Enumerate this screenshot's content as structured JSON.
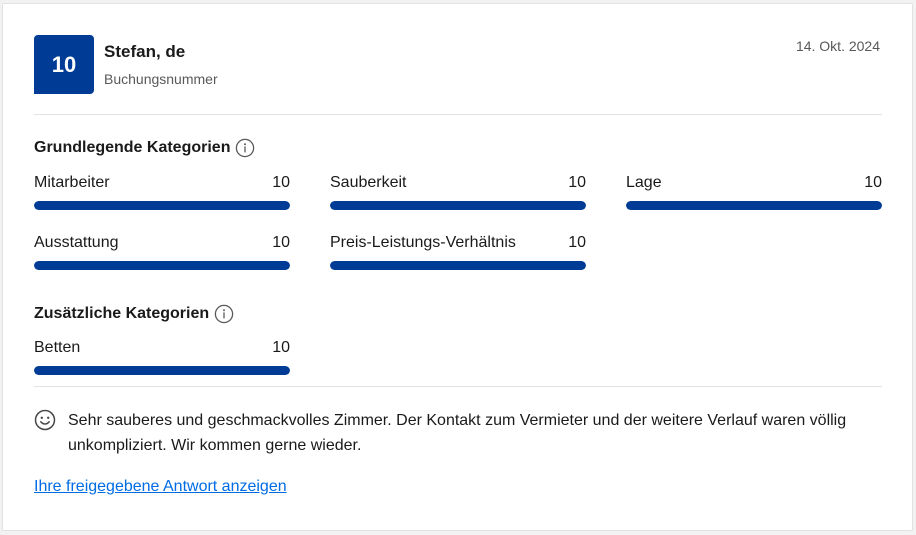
{
  "review": {
    "score": "10",
    "reviewer_name": "Stefan, de",
    "booking_label": "Buchungsnummer",
    "date": "14. Okt. 2024"
  },
  "basic_categories": {
    "title": "Grundlegende Kategorien",
    "items": [
      {
        "label": "Mitarbeiter",
        "value": "10",
        "fraction": 1.0
      },
      {
        "label": "Sauberkeit",
        "value": "10",
        "fraction": 1.0
      },
      {
        "label": "Lage",
        "value": "10",
        "fraction": 1.0
      },
      {
        "label": "Ausstattung",
        "value": "10",
        "fraction": 1.0
      },
      {
        "label": "Preis-Leistungs-Verhältnis",
        "value": "10",
        "fraction": 1.0
      }
    ]
  },
  "extra_categories": {
    "title": "Zusätzliche Kategorien",
    "items": [
      {
        "label": "Betten",
        "value": "10",
        "fraction": 1.0
      }
    ]
  },
  "comment": {
    "icon": "smile-icon",
    "text": "Sehr sauberes und geschmackvolles Zimmer. Der Kontakt zum Vermieter und der weitere Verlauf waren völlig unkompliziert. Wir kommen gerne wieder."
  },
  "response_link": "Ihre freigegebene Antwort anzeigen",
  "colors": {
    "brand": "#003b95",
    "link": "#006ce4"
  }
}
